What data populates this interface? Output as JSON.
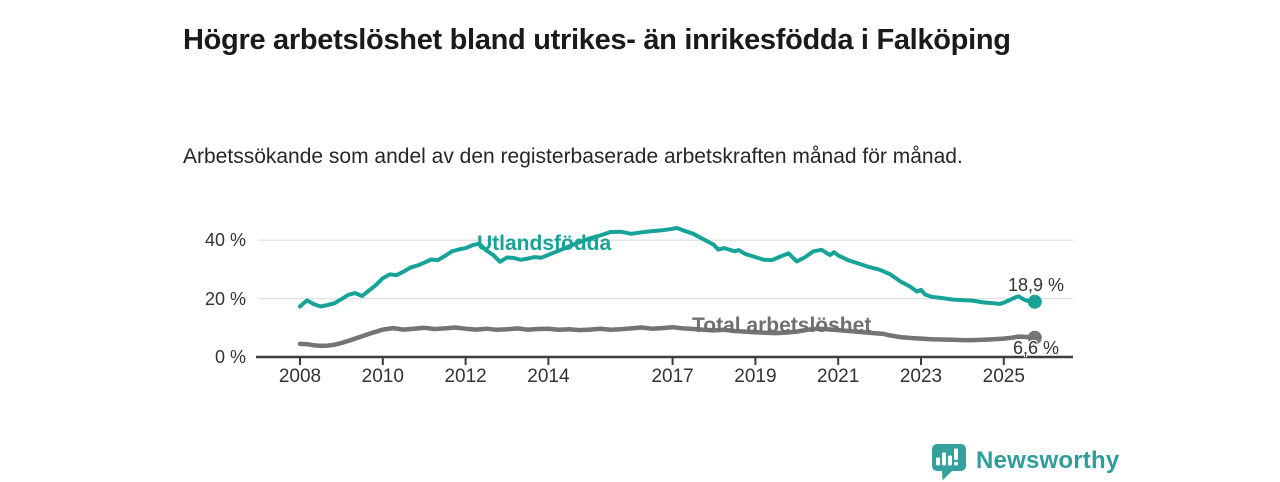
{
  "header": {
    "title": "Högre arbetslöshet bland utrikes- än inrikesfödda i Falköping",
    "subtitle": "Arbetssökande som andel av den registerbaserade arbetskraften månad för månad."
  },
  "footer": {
    "brand": "Newsworthy",
    "logo_icon": "bar-chart-speech-bubble-icon"
  },
  "colors": {
    "series_utlandsfodda": "#17a398",
    "series_total": "#747474",
    "series_total_label": "#6f6f6f",
    "axis": "#3d3d3d",
    "grid": "#e0e0e0",
    "tick_text": "#333333",
    "title_text": "#1a1a1a",
    "brand_teal": "#2f9e9a",
    "background": "#ffffff"
  },
  "chart_data": {
    "type": "line",
    "title": "Högre arbetslöshet bland utrikes- än inrikesfödda i Falköping",
    "subtitle": "Arbetssökande som andel av den registerbaserade arbetskraften månad för månad.",
    "unit": "%",
    "grid": "horizontal-only",
    "legend_position": "inline-labels-on-lines",
    "x_axis": {
      "label": "",
      "ticks": [
        2008,
        2010,
        2012,
        2014,
        2017,
        2019,
        2021,
        2023,
        2025
      ],
      "range": [
        2007.0,
        2026.7
      ]
    },
    "y_axis": {
      "label": "",
      "ticks": [
        "0 %",
        "20 %",
        "40 %"
      ],
      "tick_values": [
        0,
        20,
        40
      ],
      "range": [
        0,
        46
      ]
    },
    "series": [
      {
        "id": "utlandsfodda",
        "name": "Utlandsfödda",
        "color": "#17a398",
        "end_label": "18,9 %",
        "end_value": 18.9,
        "points": [
          [
            2008.0,
            17.3
          ],
          [
            2008.17,
            19.4
          ],
          [
            2008.33,
            18.1
          ],
          [
            2008.5,
            17.3
          ],
          [
            2008.67,
            17.8
          ],
          [
            2008.83,
            18.4
          ],
          [
            2009.0,
            19.8
          ],
          [
            2009.17,
            21.3
          ],
          [
            2009.33,
            21.9
          ],
          [
            2009.5,
            20.9
          ],
          [
            2009.67,
            22.8
          ],
          [
            2009.83,
            24.6
          ],
          [
            2010.0,
            27.0
          ],
          [
            2010.17,
            28.3
          ],
          [
            2010.33,
            28.0
          ],
          [
            2010.5,
            29.2
          ],
          [
            2010.67,
            30.6
          ],
          [
            2010.83,
            31.3
          ],
          [
            2011.0,
            32.3
          ],
          [
            2011.17,
            33.4
          ],
          [
            2011.33,
            33.2
          ],
          [
            2011.5,
            34.6
          ],
          [
            2011.67,
            36.2
          ],
          [
            2011.83,
            36.8
          ],
          [
            2012.0,
            37.3
          ],
          [
            2012.17,
            38.3
          ],
          [
            2012.33,
            38.8
          ],
          [
            2012.5,
            36.5
          ],
          [
            2012.67,
            34.9
          ],
          [
            2012.83,
            32.6
          ],
          [
            2013.0,
            34.1
          ],
          [
            2013.17,
            33.9
          ],
          [
            2013.33,
            33.3
          ],
          [
            2013.5,
            33.7
          ],
          [
            2013.67,
            34.2
          ],
          [
            2013.83,
            34.0
          ],
          [
            2014.0,
            35.0
          ],
          [
            2014.25,
            36.4
          ],
          [
            2014.5,
            37.9
          ],
          [
            2014.75,
            39.3
          ],
          [
            2015.0,
            40.6
          ],
          [
            2015.25,
            41.6
          ],
          [
            2015.5,
            42.8
          ],
          [
            2015.75,
            42.9
          ],
          [
            2016.0,
            42.2
          ],
          [
            2016.25,
            42.7
          ],
          [
            2016.5,
            43.1
          ],
          [
            2016.75,
            43.4
          ],
          [
            2017.0,
            43.9
          ],
          [
            2017.1,
            44.2
          ],
          [
            2017.25,
            43.4
          ],
          [
            2017.5,
            42.2
          ],
          [
            2017.75,
            40.3
          ],
          [
            2018.0,
            38.4
          ],
          [
            2018.1,
            36.8
          ],
          [
            2018.25,
            37.3
          ],
          [
            2018.5,
            36.2
          ],
          [
            2018.6,
            36.6
          ],
          [
            2018.75,
            35.3
          ],
          [
            2019.0,
            34.2
          ],
          [
            2019.2,
            33.3
          ],
          [
            2019.4,
            33.2
          ],
          [
            2019.6,
            34.4
          ],
          [
            2019.8,
            35.5
          ],
          [
            2020.0,
            32.7
          ],
          [
            2020.2,
            34.2
          ],
          [
            2020.4,
            36.2
          ],
          [
            2020.6,
            36.7
          ],
          [
            2020.8,
            34.9
          ],
          [
            2020.9,
            35.9
          ],
          [
            2021.0,
            34.8
          ],
          [
            2021.25,
            33.1
          ],
          [
            2021.5,
            32.0
          ],
          [
            2021.75,
            30.8
          ],
          [
            2022.0,
            29.9
          ],
          [
            2022.25,
            28.4
          ],
          [
            2022.5,
            25.9
          ],
          [
            2022.75,
            24.0
          ],
          [
            2022.9,
            22.4
          ],
          [
            2023.0,
            23.0
          ],
          [
            2023.1,
            21.4
          ],
          [
            2023.25,
            20.6
          ],
          [
            2023.5,
            20.2
          ],
          [
            2023.75,
            19.7
          ],
          [
            2024.0,
            19.5
          ],
          [
            2024.25,
            19.3
          ],
          [
            2024.5,
            18.7
          ],
          [
            2024.75,
            18.4
          ],
          [
            2024.9,
            18.2
          ],
          [
            2025.0,
            18.6
          ],
          [
            2025.2,
            19.9
          ],
          [
            2025.35,
            20.8
          ],
          [
            2025.5,
            19.6
          ],
          [
            2025.6,
            19.1
          ],
          [
            2025.75,
            18.9
          ]
        ]
      },
      {
        "id": "total",
        "name": "Total arbetslöshet",
        "color": "#747474",
        "end_label": "6,6 %",
        "end_value": 6.6,
        "points": [
          [
            2008.0,
            4.5
          ],
          [
            2008.17,
            4.4
          ],
          [
            2008.33,
            4.0
          ],
          [
            2008.5,
            3.8
          ],
          [
            2008.67,
            3.9
          ],
          [
            2008.83,
            4.2
          ],
          [
            2009.0,
            4.8
          ],
          [
            2009.25,
            5.9
          ],
          [
            2009.5,
            7.1
          ],
          [
            2009.75,
            8.3
          ],
          [
            2010.0,
            9.4
          ],
          [
            2010.25,
            9.9
          ],
          [
            2010.5,
            9.4
          ],
          [
            2010.75,
            9.7
          ],
          [
            2011.0,
            10.0
          ],
          [
            2011.25,
            9.6
          ],
          [
            2011.5,
            9.8
          ],
          [
            2011.75,
            10.1
          ],
          [
            2012.0,
            9.7
          ],
          [
            2012.25,
            9.4
          ],
          [
            2012.5,
            9.7
          ],
          [
            2012.75,
            9.3
          ],
          [
            2013.0,
            9.5
          ],
          [
            2013.25,
            9.8
          ],
          [
            2013.5,
            9.4
          ],
          [
            2013.75,
            9.6
          ],
          [
            2014.0,
            9.7
          ],
          [
            2014.25,
            9.3
          ],
          [
            2014.5,
            9.5
          ],
          [
            2014.75,
            9.2
          ],
          [
            2015.0,
            9.4
          ],
          [
            2015.25,
            9.7
          ],
          [
            2015.5,
            9.3
          ],
          [
            2015.75,
            9.5
          ],
          [
            2016.0,
            9.8
          ],
          [
            2016.25,
            10.1
          ],
          [
            2016.5,
            9.7
          ],
          [
            2016.75,
            9.9
          ],
          [
            2017.0,
            10.2
          ],
          [
            2017.25,
            9.8
          ],
          [
            2017.5,
            9.6
          ],
          [
            2017.75,
            9.3
          ],
          [
            2018.0,
            9.1
          ],
          [
            2018.25,
            9.3
          ],
          [
            2018.5,
            8.9
          ],
          [
            2018.75,
            8.7
          ],
          [
            2019.0,
            8.5
          ],
          [
            2019.25,
            8.3
          ],
          [
            2019.5,
            8.2
          ],
          [
            2019.75,
            8.4
          ],
          [
            2020.0,
            8.7
          ],
          [
            2020.25,
            9.3
          ],
          [
            2020.5,
            9.7
          ],
          [
            2020.75,
            9.5
          ],
          [
            2021.0,
            9.2
          ],
          [
            2021.25,
            8.9
          ],
          [
            2021.5,
            8.6
          ],
          [
            2021.75,
            8.3
          ],
          [
            2022.0,
            8.0
          ],
          [
            2022.1,
            7.9
          ],
          [
            2022.25,
            7.4
          ],
          [
            2022.5,
            6.8
          ],
          [
            2022.75,
            6.5
          ],
          [
            2023.0,
            6.3
          ],
          [
            2023.25,
            6.1
          ],
          [
            2023.5,
            6.0
          ],
          [
            2023.75,
            5.9
          ],
          [
            2024.0,
            5.8
          ],
          [
            2024.25,
            5.8
          ],
          [
            2024.5,
            5.9
          ],
          [
            2024.75,
            6.1
          ],
          [
            2025.0,
            6.3
          ],
          [
            2025.2,
            6.6
          ],
          [
            2025.35,
            7.0
          ],
          [
            2025.5,
            6.9
          ],
          [
            2025.75,
            6.6
          ]
        ]
      }
    ]
  }
}
